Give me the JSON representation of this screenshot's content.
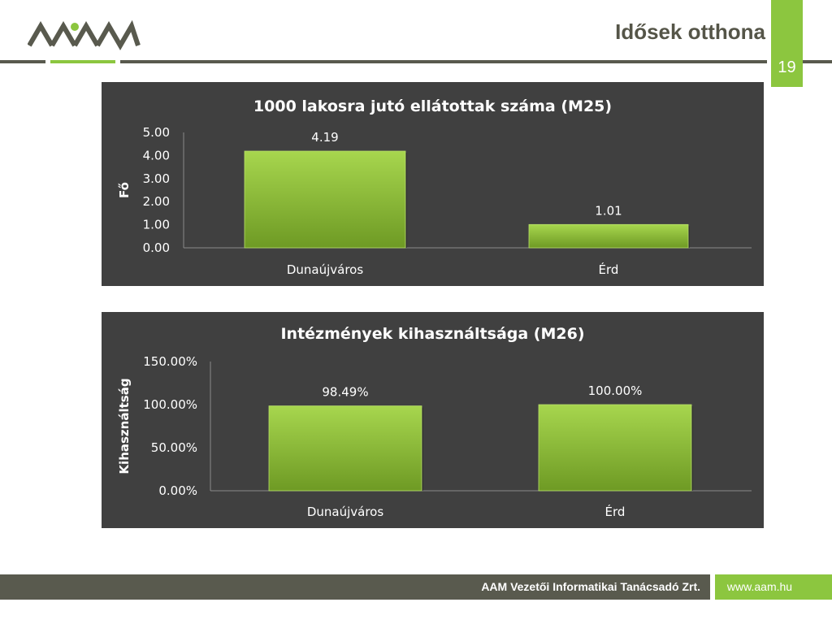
{
  "header": {
    "title": "Idősek otthona",
    "page_number": "19"
  },
  "footer": {
    "company": "AAM Vezetői Informatikai Tanácsadó Zrt.",
    "url": "www.aam.hu"
  },
  "colors": {
    "accent": "#8cc63f",
    "dark": "#595a4e",
    "panel": "#404040",
    "bar_top": "#a7d64e",
    "bar_bottom": "#6e9a24"
  },
  "chart_data": [
    {
      "type": "bar",
      "title": "1000 lakosra jutó ellátottak száma (M25)",
      "ylabel": "Fő",
      "xlabel": "",
      "categories": [
        "Dunaújváros",
        "Érd"
      ],
      "values": [
        4.19,
        1.01
      ],
      "value_labels": [
        "4.19",
        "1.01"
      ],
      "ylim": [
        0,
        5
      ],
      "yticks": [
        "0.00",
        "1.00",
        "2.00",
        "3.00",
        "4.00",
        "5.00"
      ],
      "grid": false,
      "legend": "none"
    },
    {
      "type": "bar",
      "title": "Intézmények kihasználtsága (M26)",
      "ylabel": "Kihasználtság",
      "xlabel": "",
      "categories": [
        "Dunaújváros",
        "Érd"
      ],
      "values": [
        98.49,
        100.0
      ],
      "value_labels": [
        "98.49%",
        "100.00%"
      ],
      "ylim": [
        0,
        150
      ],
      "yticks": [
        "0.00%",
        "50.00%",
        "100.00%",
        "150.00%"
      ],
      "grid": false,
      "legend": "none"
    }
  ]
}
